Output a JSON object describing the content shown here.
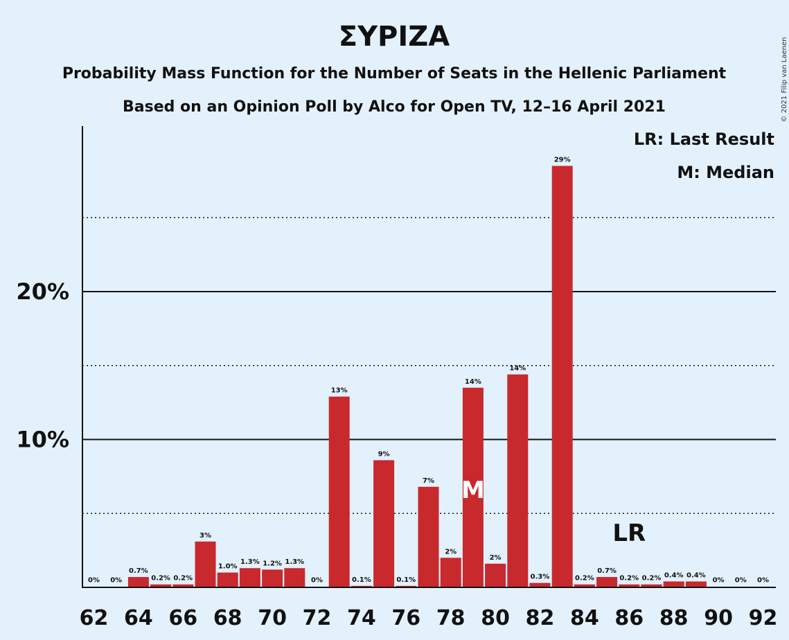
{
  "chart_data": {
    "type": "bar",
    "title": "ΣΥΡΙΖΑ",
    "subtitle_1": "Probability Mass Function for the Number of Seats in the Hellenic Parliament",
    "subtitle_2": "Based on an Opinion Poll by Alco for Open TV, 12–16 April 2021",
    "legend": {
      "last_result": "LR: Last Result",
      "median": "M: Median",
      "placement": "top-right"
    },
    "copyright": "© 2021 Filip van Laenen",
    "x": [
      62,
      63,
      64,
      65,
      66,
      67,
      68,
      69,
      70,
      71,
      72,
      73,
      74,
      75,
      76,
      77,
      78,
      79,
      80,
      81,
      82,
      83,
      84,
      85,
      86,
      87,
      88,
      89,
      90,
      91,
      92
    ],
    "values": [
      0,
      0,
      0.7,
      0.2,
      0.2,
      3.1,
      1.0,
      1.3,
      1.2,
      1.3,
      0,
      12.9,
      0.1,
      8.6,
      0.1,
      6.8,
      2.0,
      13.5,
      1.6,
      14.4,
      0.3,
      28.5,
      0.2,
      0.7,
      0.2,
      0.2,
      0.4,
      0.4,
      0,
      0,
      0
    ],
    "labels": [
      "0%",
      "0%",
      "0.7%",
      "0.2%",
      "0.2%",
      "3%",
      "1.0%",
      "1.3%",
      "1.2%",
      "1.3%",
      "0%",
      "13%",
      "0.1%",
      "9%",
      "0.1%",
      "7%",
      "2%",
      "14%",
      "2%",
      "14%",
      "0.3%",
      "29%",
      "0.2%",
      "0.7%",
      "0.2%",
      "0.2%",
      "0.4%",
      "0.4%",
      "0%",
      "0%",
      "0%"
    ],
    "x_tick_labels": [
      "62",
      "64",
      "66",
      "68",
      "70",
      "72",
      "74",
      "76",
      "78",
      "80",
      "82",
      "84",
      "86",
      "88",
      "90",
      "92"
    ],
    "y_tick_labels": [
      {
        "value": 10,
        "label": "10%"
      },
      {
        "value": 20,
        "label": "20%"
      }
    ],
    "y_major_gridlines": [
      10,
      20
    ],
    "y_minor_gridlines": [
      5,
      15,
      25
    ],
    "ylim": [
      0,
      31
    ],
    "median_seat": 79,
    "median_marker": "M",
    "last_result_seat": 86,
    "last_result_marker": "LR",
    "colors": {
      "bar": "#c8292d",
      "background": "#e3f1fc",
      "text": "#111111"
    }
  }
}
